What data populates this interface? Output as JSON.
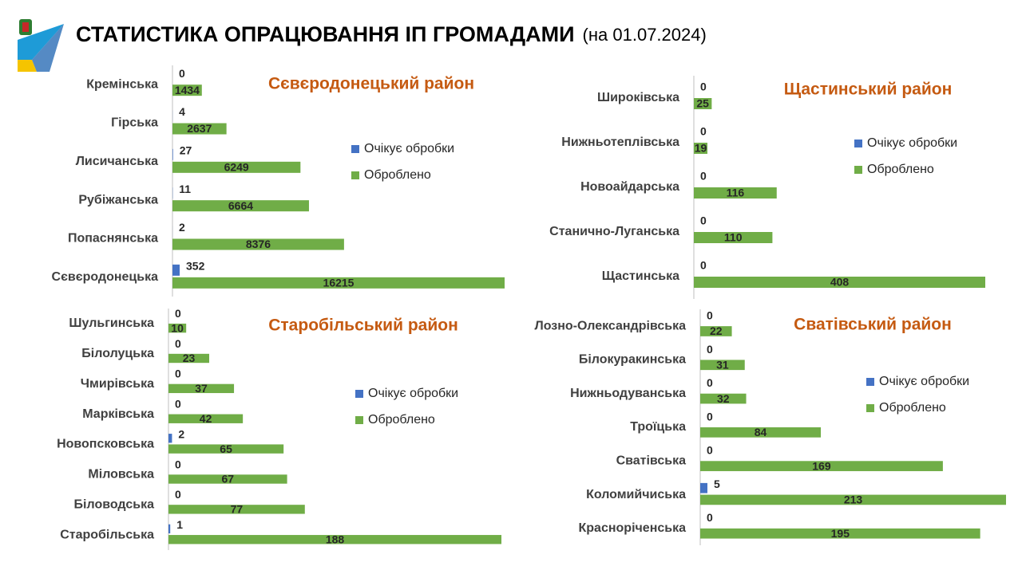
{
  "title": "СТАТИСТИКА ОПРАЦЮВАННЯ ІП ГРОМАДАМИ",
  "subtitle": "(на 01.07.2024)",
  "chart_data": [
    {
      "type": "bar",
      "title": "Сєвєродонецький район",
      "categories": [
        "Кремінська",
        "Гірська",
        "Лисичанська",
        "Рубіжанська",
        "Попаснянська",
        "Сєвєродонецька"
      ],
      "series": [
        {
          "name": "Очікує обробки",
          "color": "#4472c4",
          "values": [
            0,
            4,
            27,
            11,
            2,
            352
          ]
        },
        {
          "name": "Оброблено",
          "color": "#70ad47",
          "values": [
            1434,
            2637,
            6249,
            6664,
            8376,
            16215
          ]
        }
      ]
    },
    {
      "type": "bar",
      "title": "Щастинський район",
      "categories": [
        "Широківська",
        "Нижньотеплівська",
        "Новоайдарська",
        "Станично-Луганська",
        "Щастинська"
      ],
      "series": [
        {
          "name": "Очікує обробки",
          "color": "#4472c4",
          "values": [
            0,
            0,
            0,
            0,
            0
          ]
        },
        {
          "name": "Оброблено",
          "color": "#70ad47",
          "values": [
            25,
            19,
            116,
            110,
            408
          ]
        }
      ]
    },
    {
      "type": "bar",
      "title": "Старобільський район",
      "categories": [
        "Шульгинська",
        "Білолуцька",
        "Чмирівська",
        "Марківська",
        "Новопсковська",
        "Міловська",
        "Біловодська",
        "Старобільська"
      ],
      "series": [
        {
          "name": "Очікує обробки",
          "color": "#4472c4",
          "values": [
            0,
            0,
            0,
            0,
            2,
            0,
            0,
            1
          ]
        },
        {
          "name": "Оброблено",
          "color": "#70ad47",
          "values": [
            10,
            23,
            37,
            42,
            65,
            67,
            77,
            188
          ]
        }
      ]
    },
    {
      "type": "bar",
      "title": "Сватівський район",
      "categories": [
        "Лозно-Олександрівська",
        "Білокуракинська",
        "Нижньодуванська",
        "Троїцька",
        "Сватівська",
        "Коломийчиська",
        "Красноріченська"
      ],
      "series": [
        {
          "name": "Очікує обробки",
          "color": "#4472c4",
          "values": [
            0,
            0,
            0,
            0,
            0,
            5,
            0
          ]
        },
        {
          "name": "Оброблено",
          "color": "#70ad47",
          "values": [
            22,
            31,
            32,
            84,
            169,
            213,
            195
          ]
        }
      ]
    }
  ]
}
